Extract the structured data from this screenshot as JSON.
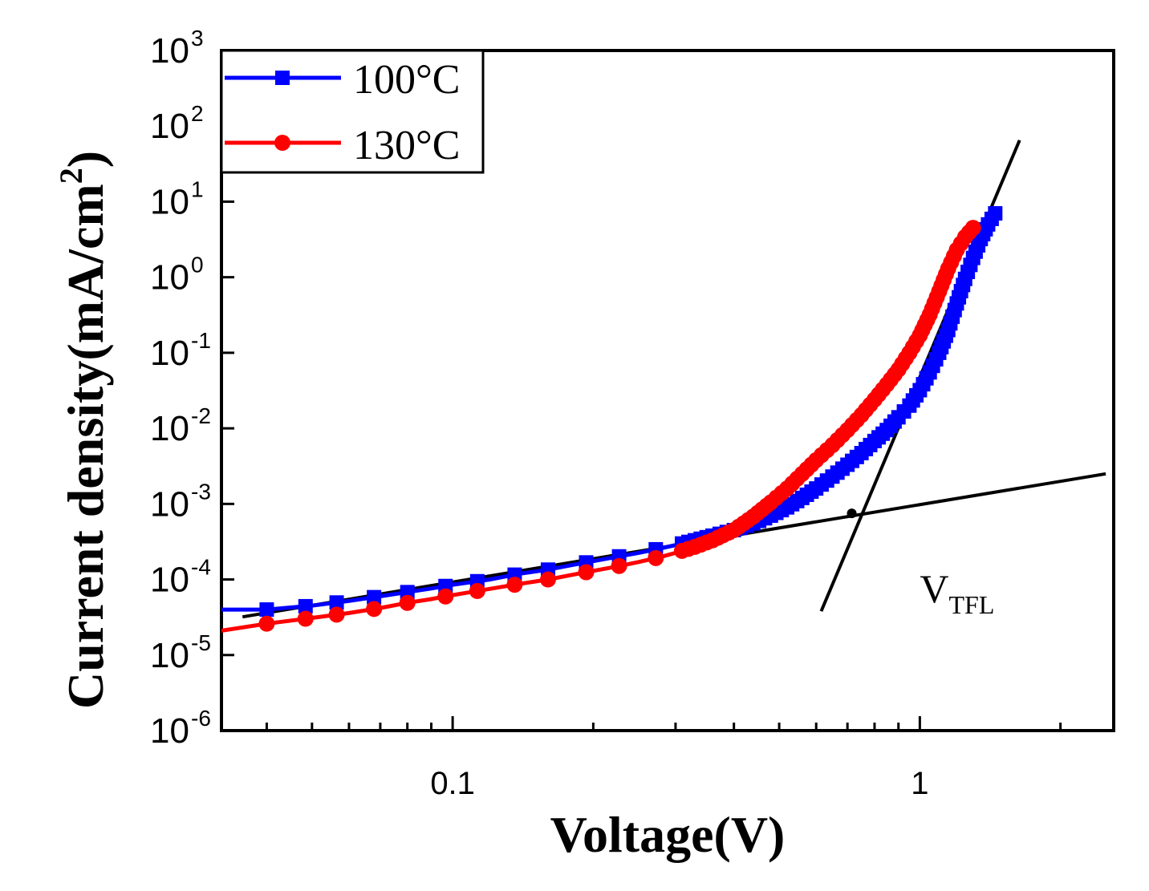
{
  "chart_data": {
    "type": "line",
    "xscale": "log",
    "yscale": "log",
    "xlabel": "Voltage(V)",
    "ylabel": "Current density(mA/cm",
    "ylabel_superscript": "2",
    "ylabel_suffix": ")",
    "xlim": [
      0.032,
      2.6
    ],
    "ylim": [
      1e-06,
      1000
    ],
    "x_ticks": [
      {
        "value": 0.1,
        "label": "0.1"
      },
      {
        "value": 1,
        "label": "1"
      }
    ],
    "y_ticks": [
      {
        "value": 1e-06,
        "base": "10",
        "exp": "-6"
      },
      {
        "value": 1e-05,
        "base": "10",
        "exp": "-5"
      },
      {
        "value": 0.0001,
        "base": "10",
        "exp": "-4"
      },
      {
        "value": 0.001,
        "base": "10",
        "exp": "-3"
      },
      {
        "value": 0.01,
        "base": "10",
        "exp": "-2"
      },
      {
        "value": 0.1,
        "base": "10",
        "exp": "-1"
      },
      {
        "value": 1,
        "base": "10",
        "exp": "0"
      },
      {
        "value": 10,
        "base": "10",
        "exp": "1"
      },
      {
        "value": 100,
        "base": "10",
        "exp": "2"
      },
      {
        "value": 1000,
        "base": "10",
        "exp": "3"
      }
    ],
    "series": [
      {
        "name": "100°C",
        "color": "#0000ff",
        "marker": "square",
        "points": [
          [
            0.032,
            4e-05
          ],
          [
            0.04,
            4e-05
          ],
          [
            0.05,
            4.5e-05
          ],
          [
            0.06,
            5.2e-05
          ],
          [
            0.07,
            6e-05
          ],
          [
            0.08,
            6.8e-05
          ],
          [
            0.09,
            7.6e-05
          ],
          [
            0.1,
            8.5e-05
          ],
          [
            0.12,
            0.0001
          ],
          [
            0.14,
            0.00012
          ],
          [
            0.16,
            0.000135
          ],
          [
            0.18,
            0.000155
          ],
          [
            0.2,
            0.000175
          ],
          [
            0.22,
            0.000195
          ],
          [
            0.25,
            0.000225
          ],
          [
            0.28,
            0.00026
          ],
          [
            0.3,
            0.000285
          ],
          [
            0.33,
            0.00033
          ],
          [
            0.36,
            0.00038
          ],
          [
            0.4,
            0.00045
          ],
          [
            0.44,
            0.00055
          ],
          [
            0.48,
            0.0007
          ],
          [
            0.52,
            0.0009
          ],
          [
            0.56,
            0.0012
          ],
          [
            0.6,
            0.0016
          ],
          [
            0.65,
            0.0023
          ],
          [
            0.7,
            0.0033
          ],
          [
            0.75,
            0.0047
          ],
          [
            0.8,
            0.0068
          ],
          [
            0.85,
            0.0095
          ],
          [
            0.9,
            0.014
          ],
          [
            0.95,
            0.02
          ],
          [
            1.0,
            0.032
          ],
          [
            1.05,
            0.055
          ],
          [
            1.1,
            0.1
          ],
          [
            1.15,
            0.2
          ],
          [
            1.2,
            0.45
          ],
          [
            1.25,
            0.95
          ],
          [
            1.3,
            1.8
          ],
          [
            1.35,
            3.2
          ],
          [
            1.4,
            5.0
          ],
          [
            1.45,
            7.0
          ]
        ]
      },
      {
        "name": "130°C",
        "color": "#ff0000",
        "marker": "circle",
        "points": [
          [
            0.032,
            2.1e-05
          ],
          [
            0.04,
            2.6e-05
          ],
          [
            0.05,
            3.1e-05
          ],
          [
            0.06,
            3.6e-05
          ],
          [
            0.07,
            4.2e-05
          ],
          [
            0.08,
            4.9e-05
          ],
          [
            0.09,
            5.5e-05
          ],
          [
            0.1,
            6.2e-05
          ],
          [
            0.12,
            7.5e-05
          ],
          [
            0.14,
            8.8e-05
          ],
          [
            0.16,
            0.0001
          ],
          [
            0.18,
            0.000115
          ],
          [
            0.2,
            0.00013
          ],
          [
            0.22,
            0.000145
          ],
          [
            0.25,
            0.00017
          ],
          [
            0.28,
            0.0002
          ],
          [
            0.3,
            0.000225
          ],
          [
            0.33,
            0.00027
          ],
          [
            0.36,
            0.00033
          ],
          [
            0.4,
            0.00045
          ],
          [
            0.44,
            0.00068
          ],
          [
            0.48,
            0.00105
          ],
          [
            0.52,
            0.0016
          ],
          [
            0.56,
            0.0025
          ],
          [
            0.6,
            0.0038
          ],
          [
            0.65,
            0.006
          ],
          [
            0.7,
            0.0095
          ],
          [
            0.75,
            0.015
          ],
          [
            0.8,
            0.024
          ],
          [
            0.85,
            0.038
          ],
          [
            0.9,
            0.06
          ],
          [
            0.95,
            0.1
          ],
          [
            1.0,
            0.17
          ],
          [
            1.05,
            0.32
          ],
          [
            1.1,
            0.65
          ],
          [
            1.15,
            1.3
          ],
          [
            1.2,
            2.3
          ],
          [
            1.25,
            3.4
          ],
          [
            1.3,
            4.5
          ]
        ]
      }
    ],
    "fit_lines": [
      {
        "name": "ohmic-fit",
        "points": [
          [
            0.0355,
            3.2e-05
          ],
          [
            2.5,
            0.0025
          ]
        ]
      },
      {
        "name": "tfl-fit",
        "points": [
          [
            0.615,
            3.8e-05
          ],
          [
            1.635,
            65
          ]
        ]
      }
    ],
    "intersection": [
      0.715,
      0.00075
    ],
    "annotation": {
      "main": "V",
      "sub": "TFL",
      "x": 1.0,
      "y": 5e-05
    },
    "legend": {
      "position": "top-left"
    }
  }
}
